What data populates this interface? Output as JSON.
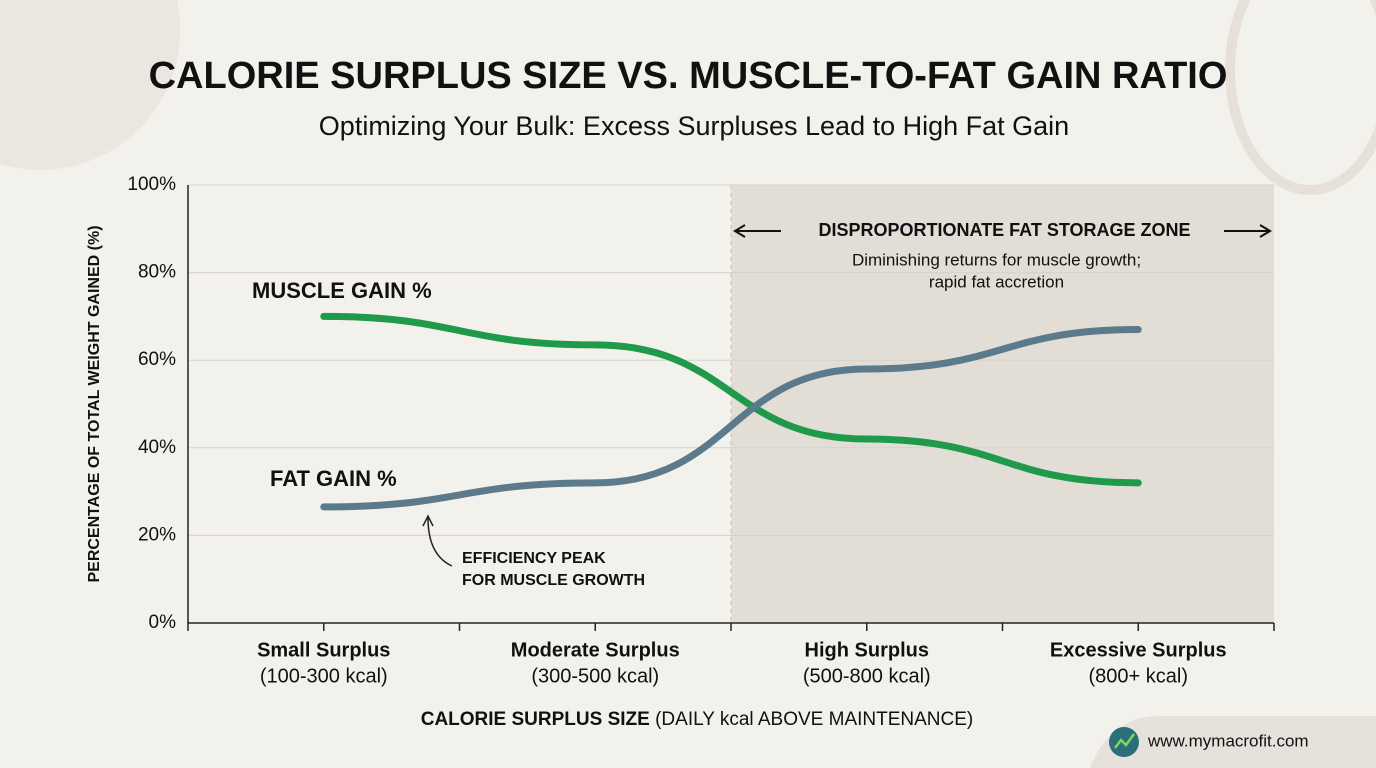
{
  "chart_data": {
    "type": "line",
    "title": "CALORIE SURPLUS SIZE VS. MUSCLE-TO-FAT GAIN RATIO",
    "subtitle": "Optimizing Your Bulk: Excess Surpluses Lead to High Fat Gain",
    "x_label": "CALORIE SURPLUS SIZE",
    "x_label_detail": "(DAILY kcal ABOVE MAINTENANCE)",
    "y_label": "PERCENTAGE OF TOTAL WEIGHT GAINED (%)",
    "categories": [
      "Small Surplus",
      "Moderate Surplus",
      "High Surplus",
      "Excessive Surplus"
    ],
    "category_details": [
      "(100-300 kcal)",
      "(300-500 kcal)",
      "(500-800 kcal)",
      "(800+ kcal)"
    ],
    "series": [
      {
        "name": "MUSCLE GAIN %",
        "color": "#1f9a4a",
        "values": [
          70,
          63.5,
          42,
          32
        ]
      },
      {
        "name": "FAT GAIN %",
        "color": "#5b7a8c",
        "values": [
          26.5,
          32,
          58,
          67
        ]
      }
    ],
    "ylim": [
      0,
      100
    ],
    "yticks": [
      {
        "value": 0,
        "label": "0%"
      },
      {
        "value": 20,
        "label": "20%"
      },
      {
        "value": 40,
        "label": "40%"
      },
      {
        "value": 60,
        "label": "60%"
      },
      {
        "value": 80,
        "label": "80%"
      },
      {
        "value": 100,
        "label": "100%"
      }
    ],
    "grid": true,
    "zone": {
      "title": "DISPROPORTIONATE FAT STORAGE ZONE",
      "note": [
        "Diminishing returns for muscle growth;",
        "rapid fat accretion"
      ]
    },
    "annotation": [
      "EFFICIENCY PEAK",
      "FOR MUSCLE GROWTH"
    ],
    "footer": "www.mymacrofit.com"
  }
}
